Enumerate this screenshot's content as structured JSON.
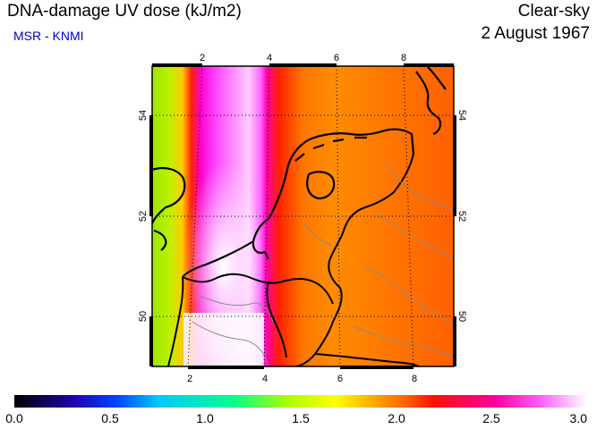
{
  "header": {
    "title": "DNA-damage UV dose (kJ/m2)",
    "organization": "MSR - KNMI",
    "sky_condition": "Clear-sky",
    "date": "2 August 1967"
  },
  "map": {
    "region": "Netherlands / Belgium",
    "lon_ticks_top": [
      "2",
      "4",
      "6",
      "8"
    ],
    "lon_ticks_bottom": [
      "2",
      "4",
      "6",
      "8"
    ],
    "lat_ticks_left": [
      "54",
      "52",
      "50"
    ],
    "lat_ticks_right": [
      "54",
      "52",
      "50"
    ],
    "colors": {
      "green": "#9be800",
      "magenta": "#ff33ff",
      "orange": "#ff8a00",
      "coast": "#000000",
      "border": "#8c8c8c"
    }
  },
  "colorbar": {
    "labels": [
      "0.0",
      "0.5",
      "1.0",
      "1.5",
      "2.0",
      "2.5",
      "3.0"
    ]
  }
}
